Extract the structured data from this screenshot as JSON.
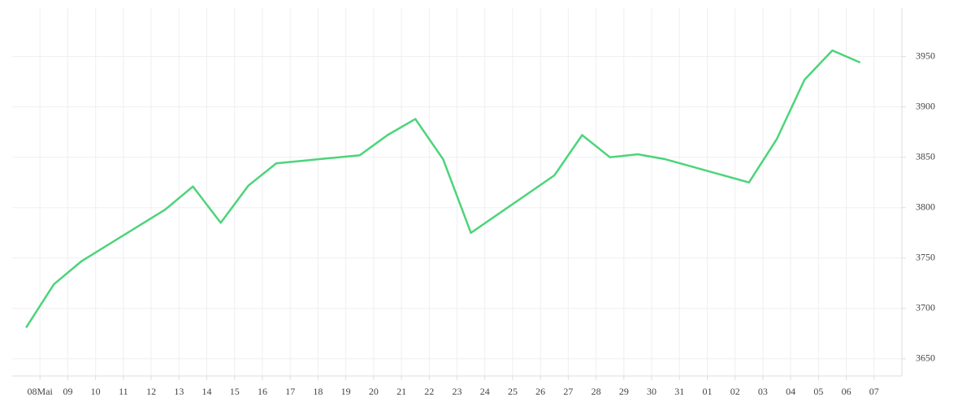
{
  "chart_data": {
    "type": "line",
    "x": [
      -0.5,
      0.5,
      1.5,
      4.5,
      5.5,
      6.5,
      7.5,
      8.5,
      11.5,
      12.5,
      13.5,
      14.5,
      15.5,
      18.5,
      19.5,
      20.5,
      21.5,
      22.5,
      25.5,
      26.5,
      27.5,
      28.5,
      29.5
    ],
    "series": [
      {
        "color": "#4cd47a",
        "values": [
          3681,
          3724,
          3747,
          3798,
          3821,
          3785,
          3822,
          3844,
          3852,
          3872,
          3888,
          3848,
          3775,
          3832,
          3872,
          3850,
          3853,
          3848,
          3825,
          3868,
          3927,
          3956,
          3944
        ]
      }
    ],
    "xlim": [
      -1,
      31
    ],
    "xticks": [
      {
        "value": 0,
        "label": "08Mai"
      },
      {
        "value": 1,
        "label": "09"
      },
      {
        "value": 2,
        "label": "10"
      },
      {
        "value": 3,
        "label": "11"
      },
      {
        "value": 4,
        "label": "12"
      },
      {
        "value": 5,
        "label": "13"
      },
      {
        "value": 6,
        "label": "14"
      },
      {
        "value": 7,
        "label": "15"
      },
      {
        "value": 8,
        "label": "16"
      },
      {
        "value": 9,
        "label": "17"
      },
      {
        "value": 10,
        "label": "18"
      },
      {
        "value": 11,
        "label": "19"
      },
      {
        "value": 12,
        "label": "20"
      },
      {
        "value": 13,
        "label": "21"
      },
      {
        "value": 14,
        "label": "22"
      },
      {
        "value": 15,
        "label": "23"
      },
      {
        "value": 16,
        "label": "24"
      },
      {
        "value": 17,
        "label": "25"
      },
      {
        "value": 18,
        "label": "26"
      },
      {
        "value": 19,
        "label": "27"
      },
      {
        "value": 20,
        "label": "28"
      },
      {
        "value": 21,
        "label": "29"
      },
      {
        "value": 22,
        "label": "30"
      },
      {
        "value": 23,
        "label": "31"
      },
      {
        "value": 24,
        "label": "01"
      },
      {
        "value": 25,
        "label": "02"
      },
      {
        "value": 26,
        "label": "03"
      },
      {
        "value": 27,
        "label": "04"
      },
      {
        "value": 28,
        "label": "05"
      },
      {
        "value": 29,
        "label": "06"
      },
      {
        "value": 30,
        "label": "07"
      }
    ],
    "ylim": [
      3633,
      3998
    ],
    "yticks": [
      3650,
      3700,
      3750,
      3800,
      3850,
      3900,
      3950
    ],
    "grid": true
  }
}
